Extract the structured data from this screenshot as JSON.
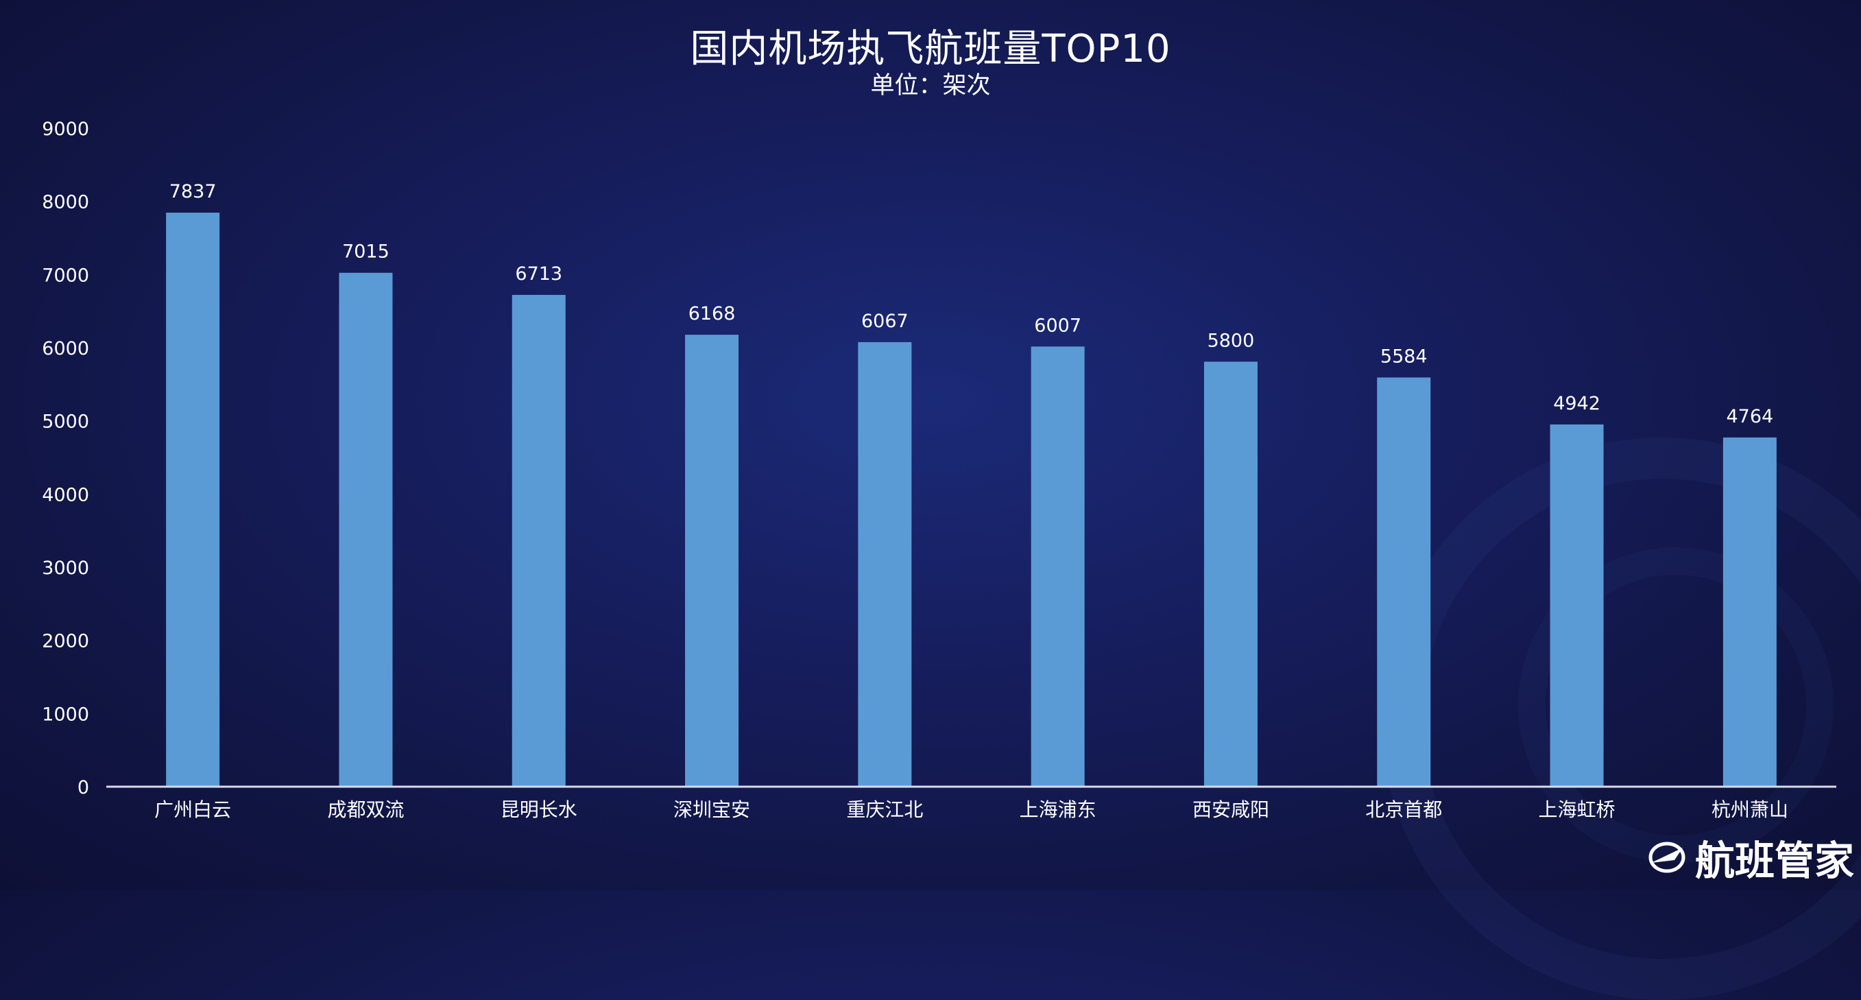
{
  "chart_data": {
    "type": "bar",
    "title": "国内机场执飞航班量TOP10",
    "subtitle": "单位：架次",
    "categories": [
      "广州白云",
      "成都双流",
      "昆明长水",
      "深圳宝安",
      "重庆江北",
      "上海浦东",
      "西安咸阳",
      "北京首都",
      "上海虹桥",
      "杭州萧山"
    ],
    "values": [
      7837,
      7015,
      6713,
      6168,
      6067,
      6007,
      5800,
      5584,
      4942,
      4764
    ],
    "ylim": [
      0,
      9000
    ],
    "yticks": [
      0,
      1000,
      2000,
      3000,
      4000,
      5000,
      6000,
      7000,
      8000,
      9000
    ],
    "grid": false,
    "bar_color": "#5b9bd5"
  },
  "brand": {
    "name": "航班管家"
  }
}
